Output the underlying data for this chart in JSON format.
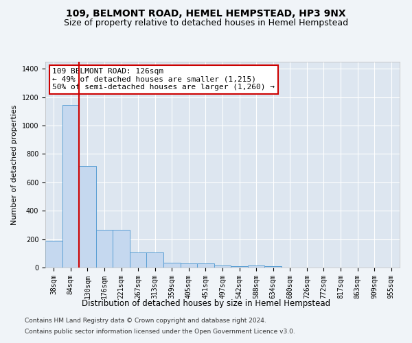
{
  "title1": "109, BELMONT ROAD, HEMEL HEMPSTEAD, HP3 9NX",
  "title2": "Size of property relative to detached houses in Hemel Hempstead",
  "xlabel": "Distribution of detached houses by size in Hemel Hempstead",
  "ylabel": "Number of detached properties",
  "footnote1": "Contains HM Land Registry data © Crown copyright and database right 2024.",
  "footnote2": "Contains public sector information licensed under the Open Government Licence v3.0.",
  "bin_labels": [
    "38sqm",
    "84sqm",
    "130sqm",
    "176sqm",
    "221sqm",
    "267sqm",
    "313sqm",
    "359sqm",
    "405sqm",
    "451sqm",
    "497sqm",
    "542sqm",
    "588sqm",
    "634sqm",
    "680sqm",
    "726sqm",
    "772sqm",
    "817sqm",
    "863sqm",
    "909sqm",
    "955sqm"
  ],
  "bar_values": [
    190,
    1145,
    715,
    265,
    265,
    105,
    105,
    35,
    30,
    28,
    15,
    12,
    15,
    12,
    0,
    0,
    0,
    0,
    0,
    0,
    0
  ],
  "bar_color": "#c5d8ef",
  "bar_edge_color": "#5a9fd4",
  "vline_color": "#cc0000",
  "vline_x_index": 1.5,
  "annotation_line1": "109 BELMONT ROAD: 126sqm",
  "annotation_line2": "← 49% of detached houses are smaller (1,215)",
  "annotation_line3": "50% of semi-detached houses are larger (1,260) →",
  "annotation_box_color": "#cc0000",
  "ylim": [
    0,
    1450
  ],
  "yticks": [
    0,
    200,
    400,
    600,
    800,
    1000,
    1200,
    1400
  ],
  "bg_color": "#dde6f0",
  "grid_color": "#ffffff",
  "fig_bg_color": "#f0f4f8",
  "title1_fontsize": 10,
  "title2_fontsize": 9,
  "xlabel_fontsize": 8.5,
  "ylabel_fontsize": 8,
  "tick_fontsize": 7,
  "annotation_fontsize": 8,
  "footnote_fontsize": 6.5
}
